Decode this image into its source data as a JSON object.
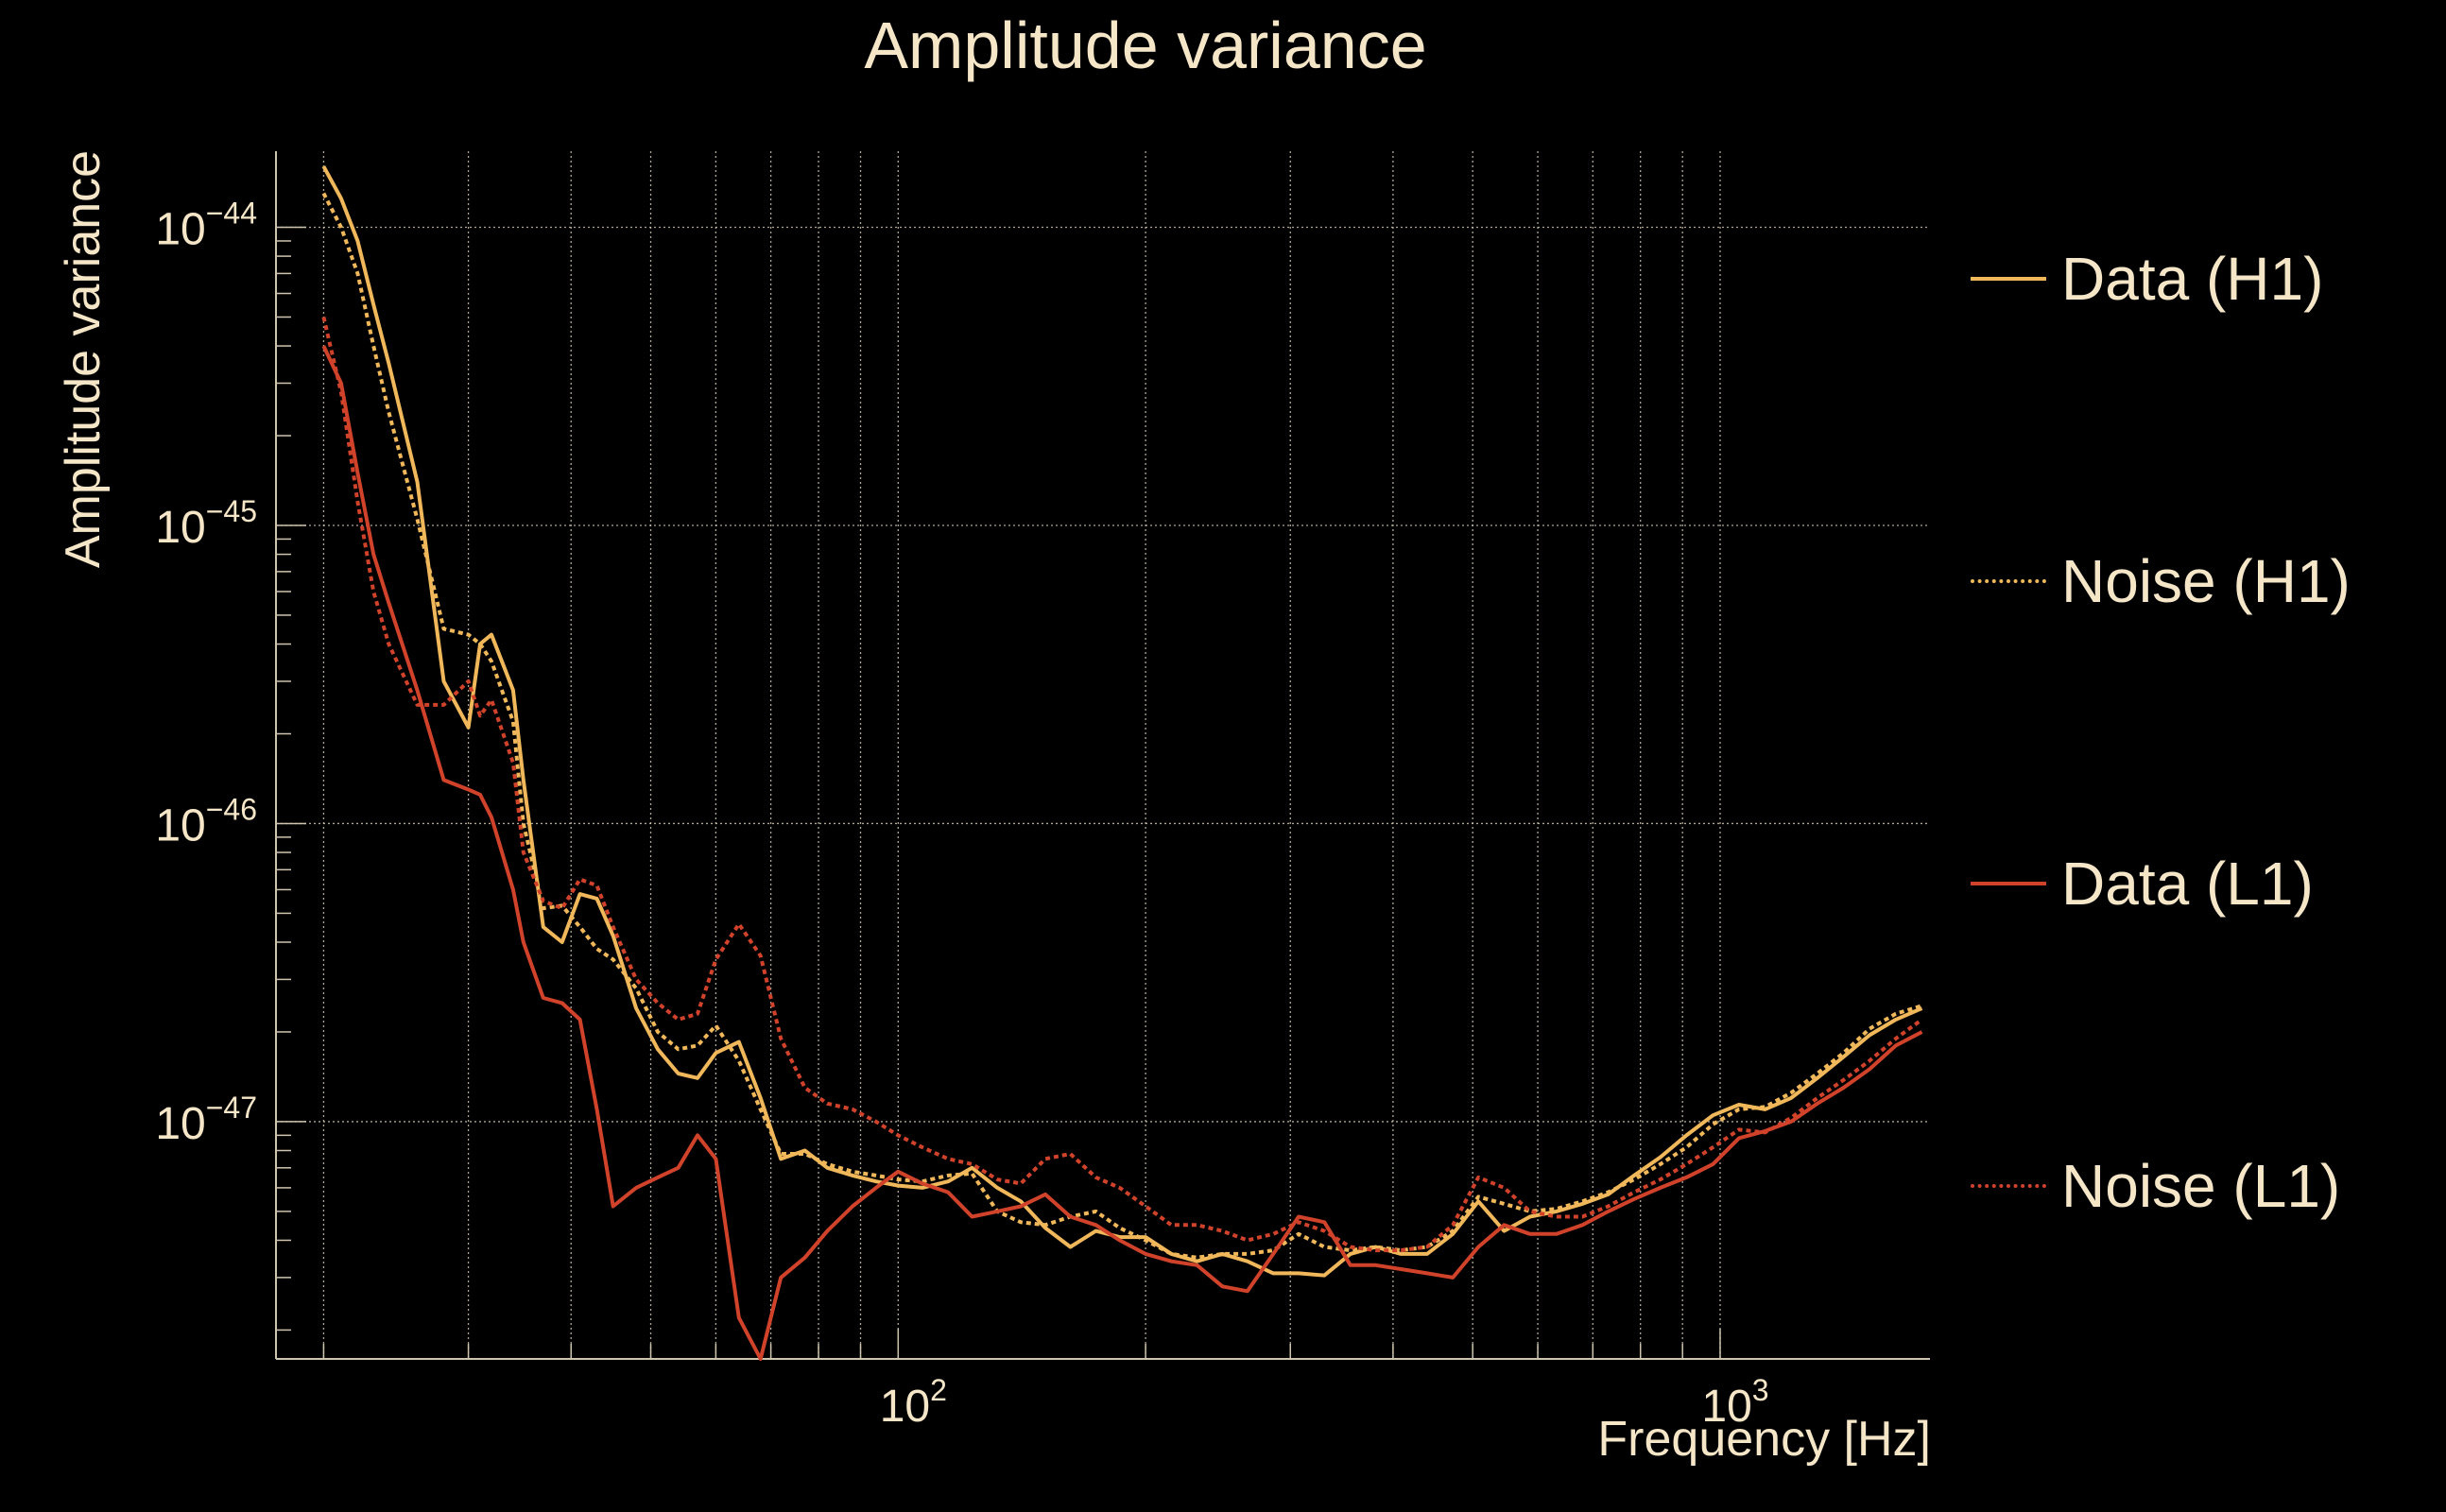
{
  "title": "Amplitude variance",
  "colors": {
    "background": "#000000",
    "text": "#f5e6c8",
    "grid": "#cfc5ae",
    "h1": "#f0b85a",
    "l1": "#d0432a"
  },
  "chart_data": {
    "type": "line",
    "title": "Amplitude variance",
    "xlabel": "Frequency [Hz]",
    "ylabel": "Amplitude variance",
    "xscale": "log",
    "yscale": "log",
    "xlim": [
      17.5,
      1800
    ],
    "ylim": [
      1.6e-48,
      1.8e-44
    ],
    "grid": true,
    "legend_position": "right",
    "x_tick_labels": [
      {
        "value": 100,
        "base": "10",
        "exp": "2"
      },
      {
        "value": 1000,
        "base": "10",
        "exp": "3"
      }
    ],
    "y_tick_labels": [
      {
        "value": 1e-44,
        "base": "10",
        "exp": "−44"
      },
      {
        "value": 1e-45,
        "base": "10",
        "exp": "−45"
      },
      {
        "value": 1e-46,
        "base": "10",
        "exp": "−46"
      },
      {
        "value": 1e-47,
        "base": "10",
        "exp": "−47"
      }
    ],
    "series": [
      {
        "name": "Data (H1)",
        "color": "#f0b85a",
        "style": "solid",
        "x": [
          20,
          21,
          22,
          23,
          24,
          26,
          28,
          30,
          31,
          32,
          34,
          35,
          37,
          39,
          41,
          43,
          45,
          48,
          51,
          54,
          57,
          60,
          64,
          68,
          72,
          77,
          82,
          88,
          94,
          100,
          107,
          115,
          123,
          132,
          141,
          151,
          162,
          174,
          186,
          200,
          215,
          231,
          248,
          266,
          286,
          307,
          330,
          355,
          381,
          409,
          440,
          473,
          508,
          546,
          587,
          632,
          680,
          731,
          786,
          846,
          910,
          980,
          1054,
          1134,
          1220,
          1313,
          1413,
          1520,
          1636,
          1760
        ],
        "y": [
          1.6e-44,
          1.25e-44,
          9e-45,
          5.5e-45,
          3.5e-45,
          1.4e-45,
          3e-46,
          2.1e-46,
          4e-46,
          4.3e-46,
          2.8e-46,
          1.4e-46,
          4.5e-47,
          4e-47,
          5.8e-47,
          5.6e-47,
          4.2e-47,
          2.4e-47,
          1.75e-47,
          1.45e-47,
          1.4e-47,
          1.7e-47,
          1.85e-47,
          1.2e-47,
          7.5e-48,
          8e-48,
          7e-48,
          6.6e-48,
          6.3e-48,
          6.1e-48,
          6e-48,
          6.3e-48,
          7e-48,
          6e-48,
          5.4e-48,
          4.4e-48,
          3.8e-48,
          4.3e-48,
          4.1e-48,
          4.1e-48,
          3.6e-48,
          3.4e-48,
          3.6e-48,
          3.4e-48,
          3.1e-48,
          3.1e-48,
          3.05e-48,
          3.6e-48,
          3.8e-48,
          3.6e-48,
          3.6e-48,
          4.2e-48,
          5.4e-48,
          4.3e-48,
          4.8e-48,
          5e-48,
          5.3e-48,
          5.7e-48,
          6.6e-48,
          7.6e-48,
          9e-48,
          1.05e-47,
          1.14e-47,
          1.1e-47,
          1.2e-47,
          1.4e-47,
          1.65e-47,
          1.95e-47,
          2.2e-47,
          2.4e-47
        ]
      },
      {
        "name": "Noise (H1)",
        "color": "#f0b85a",
        "style": "dotted",
        "x": [
          20,
          21,
          22,
          23,
          24,
          26,
          28,
          30,
          31,
          32,
          34,
          35,
          37,
          39,
          41,
          43,
          45,
          48,
          51,
          54,
          57,
          60,
          64,
          68,
          72,
          77,
          82,
          88,
          94,
          100,
          107,
          115,
          123,
          132,
          141,
          151,
          162,
          174,
          186,
          200,
          215,
          231,
          248,
          266,
          286,
          307,
          330,
          355,
          381,
          409,
          440,
          473,
          508,
          546,
          587,
          632,
          680,
          731,
          786,
          846,
          910,
          980,
          1054,
          1134,
          1220,
          1313,
          1413,
          1520,
          1636,
          1760
        ],
        "y": [
          1.3e-44,
          1e-44,
          7e-45,
          4e-45,
          2.4e-45,
          1.05e-45,
          4.5e-46,
          4.3e-46,
          4e-46,
          3.5e-46,
          2.2e-46,
          1e-46,
          5.2e-47,
          5.3e-47,
          4.5e-47,
          3.8e-47,
          3.5e-47,
          2.8e-47,
          2e-47,
          1.75e-47,
          1.8e-47,
          2.1e-47,
          1.6e-47,
          1.1e-47,
          7.8e-48,
          7.8e-48,
          7.2e-48,
          6.8e-48,
          6.6e-48,
          6.4e-48,
          6.3e-48,
          6.6e-48,
          6.7e-48,
          5e-48,
          4.6e-48,
          4.5e-48,
          4.8e-48,
          5e-48,
          4.4e-48,
          4e-48,
          3.6e-48,
          3.5e-48,
          3.6e-48,
          3.6e-48,
          3.7e-48,
          4.2e-48,
          3.8e-48,
          3.7e-48,
          3.8e-48,
          3.7e-48,
          3.8e-48,
          4.3e-48,
          5.6e-48,
          5.3e-48,
          5e-48,
          5.1e-48,
          5.4e-48,
          5.8e-48,
          6.4e-48,
          7.2e-48,
          8.2e-48,
          9.8e-48,
          1.1e-47,
          1.12e-47,
          1.25e-47,
          1.45e-47,
          1.7e-47,
          2.05e-47,
          2.3e-47,
          2.45e-47
        ]
      },
      {
        "name": "Data (L1)",
        "color": "#d0432a",
        "style": "solid",
        "x": [
          20,
          21,
          22,
          23,
          24,
          26,
          28,
          30,
          31,
          32,
          34,
          35,
          37,
          39,
          41,
          43,
          45,
          48,
          51,
          54,
          57,
          60,
          64,
          68,
          72,
          77,
          82,
          88,
          94,
          100,
          107,
          115,
          123,
          132,
          141,
          151,
          162,
          174,
          186,
          200,
          215,
          231,
          248,
          266,
          286,
          307,
          330,
          355,
          381,
          409,
          440,
          473,
          508,
          546,
          587,
          632,
          680,
          731,
          786,
          846,
          910,
          980,
          1054,
          1134,
          1220,
          1313,
          1413,
          1520,
          1636,
          1760
        ],
        "y": [
          4e-45,
          3e-45,
          1.5e-45,
          8e-46,
          5.5e-46,
          2.8e-46,
          1.4e-46,
          1.3e-46,
          1.25e-46,
          1.05e-46,
          6e-47,
          4e-47,
          2.6e-47,
          2.5e-47,
          2.2e-47,
          1.1e-47,
          5.2e-48,
          6e-48,
          6.5e-48,
          7e-48,
          9e-48,
          7.5e-48,
          2.2e-48,
          1.6e-48,
          3e-48,
          3.5e-48,
          4.3e-48,
          5.2e-48,
          6e-48,
          6.8e-48,
          6.2e-48,
          5.8e-48,
          4.8e-48,
          5e-48,
          5.2e-48,
          5.7e-48,
          4.8e-48,
          4.5e-48,
          4e-48,
          3.6e-48,
          3.4e-48,
          3.3e-48,
          2.8e-48,
          2.7e-48,
          3.6e-48,
          4.8e-48,
          4.6e-48,
          3.3e-48,
          3.3e-48,
          3.2e-48,
          3.1e-48,
          3e-48,
          3.8e-48,
          4.5e-48,
          4.2e-48,
          4.2e-48,
          4.5e-48,
          5e-48,
          5.5e-48,
          6e-48,
          6.5e-48,
          7.2e-48,
          8.8e-48,
          9.3e-48,
          1e-47,
          1.15e-47,
          1.3e-47,
          1.5e-47,
          1.8e-47,
          2e-47
        ]
      },
      {
        "name": "Noise (L1)",
        "color": "#d0432a",
        "style": "dotted",
        "x": [
          20,
          21,
          22,
          23,
          24,
          26,
          28,
          30,
          31,
          32,
          34,
          35,
          37,
          39,
          41,
          43,
          45,
          48,
          51,
          54,
          57,
          60,
          64,
          68,
          72,
          77,
          82,
          88,
          94,
          100,
          107,
          115,
          123,
          132,
          141,
          151,
          162,
          174,
          186,
          200,
          215,
          231,
          248,
          266,
          286,
          307,
          330,
          355,
          381,
          409,
          440,
          473,
          508,
          546,
          587,
          632,
          680,
          731,
          786,
          846,
          910,
          980,
          1054,
          1134,
          1220,
          1313,
          1413,
          1520,
          1636,
          1760
        ],
        "y": [
          5e-45,
          2.8e-45,
          1.2e-45,
          6e-46,
          4e-46,
          2.5e-46,
          2.5e-46,
          3e-46,
          2.3e-46,
          2.6e-46,
          1.6e-46,
          8e-47,
          5.5e-47,
          5.2e-47,
          6.5e-47,
          6.2e-47,
          4.5e-47,
          3e-47,
          2.5e-47,
          2.2e-47,
          2.3e-47,
          3.5e-47,
          4.6e-47,
          3.6e-47,
          1.9e-47,
          1.3e-47,
          1.15e-47,
          1.1e-47,
          1e-47,
          9e-48,
          8.2e-48,
          7.5e-48,
          7.2e-48,
          6.4e-48,
          6.2e-48,
          7.5e-48,
          7.8e-48,
          6.5e-48,
          6e-48,
          5.2e-48,
          4.5e-48,
          4.5e-48,
          4.3e-48,
          4e-48,
          4.2e-48,
          4.6e-48,
          4.3e-48,
          3.8e-48,
          3.7e-48,
          3.7e-48,
          3.8e-48,
          4.5e-48,
          6.5e-48,
          6e-48,
          5e-48,
          4.8e-48,
          4.8e-48,
          5.2e-48,
          5.8e-48,
          6.4e-48,
          7.2e-48,
          8.2e-48,
          9.4e-48,
          9.2e-48,
          1.03e-47,
          1.2e-47,
          1.38e-47,
          1.6e-47,
          1.9e-47,
          2.2e-47
        ]
      }
    ]
  }
}
